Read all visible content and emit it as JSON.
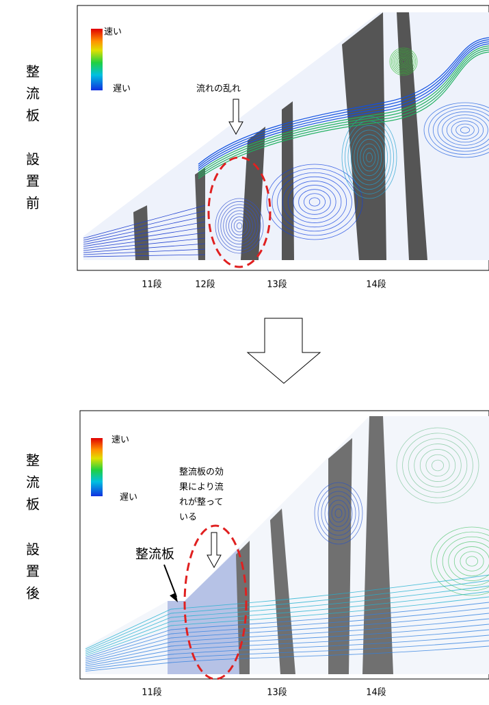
{
  "panels": [
    {
      "side_label": "整流板",
      "side_label_2": "設置前",
      "legend": {
        "fast": "速い",
        "slow": "遅い"
      },
      "annotation": [
        "流れの乱れ"
      ],
      "stages": [
        "11段",
        "12段",
        "13段",
        "14段"
      ]
    },
    {
      "side_label": "整流板",
      "side_label_2": "設置後",
      "legend": {
        "fast": "速い",
        "slow": "遅い"
      },
      "annotation": [
        "整流板の効",
        "果により流",
        "れが整って",
        "いる"
      ],
      "callout": "整流板",
      "stages": [
        "11段",
        "13段",
        "14段"
      ]
    }
  ]
}
